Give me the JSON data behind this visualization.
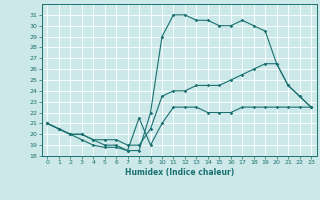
{
  "title": "",
  "xlabel": "Humidex (Indice chaleur)",
  "bg_color": "#cce8e8",
  "grid_color": "#ffffff",
  "line_color": "#1a7070",
  "xlim": [
    -0.5,
    23.5
  ],
  "ylim": [
    18,
    32
  ],
  "xticks": [
    0,
    1,
    2,
    3,
    4,
    5,
    6,
    7,
    8,
    9,
    10,
    11,
    12,
    13,
    14,
    15,
    16,
    17,
    18,
    19,
    20,
    21,
    22,
    23
  ],
  "yticks": [
    18,
    19,
    20,
    21,
    22,
    23,
    24,
    25,
    26,
    27,
    28,
    29,
    30,
    31
  ],
  "line1_x": [
    0,
    1,
    2,
    3,
    4,
    5,
    6,
    7,
    8,
    9,
    10,
    11,
    12,
    13,
    14,
    15,
    16,
    17,
    18,
    19,
    20,
    21,
    22,
    23
  ],
  "line1_y": [
    21.0,
    20.5,
    20.0,
    19.5,
    19.0,
    18.8,
    18.8,
    18.5,
    21.5,
    19.0,
    21.0,
    22.5,
    22.5,
    22.5,
    22.0,
    22.0,
    22.0,
    22.5,
    22.5,
    22.5,
    22.5,
    22.5,
    22.5,
    22.5
  ],
  "line2_x": [
    0,
    1,
    2,
    3,
    4,
    5,
    6,
    7,
    8,
    9,
    10,
    11,
    12,
    13,
    14,
    15,
    16,
    17,
    18,
    19,
    20,
    21,
    22,
    23
  ],
  "line2_y": [
    21.0,
    20.5,
    20.0,
    20.0,
    19.5,
    19.5,
    19.5,
    19.0,
    19.0,
    20.5,
    23.5,
    24.0,
    24.0,
    24.5,
    24.5,
    24.5,
    25.0,
    25.5,
    26.0,
    26.5,
    26.5,
    24.5,
    23.5,
    22.5
  ],
  "line3_x": [
    0,
    1,
    2,
    3,
    4,
    5,
    6,
    7,
    8,
    9,
    10,
    11,
    12,
    13,
    14,
    15,
    16,
    17,
    18,
    19,
    20,
    21,
    22,
    23
  ],
  "line3_y": [
    21.0,
    20.5,
    20.0,
    20.0,
    19.5,
    19.0,
    19.0,
    18.5,
    18.5,
    22.0,
    29.0,
    31.0,
    31.0,
    30.5,
    30.5,
    30.0,
    30.0,
    30.5,
    30.0,
    29.5,
    26.5,
    24.5,
    23.5,
    22.5
  ],
  "xlabel_fontsize": 5.5,
  "tick_fontsize": 4.5,
  "linewidth": 0.8,
  "markersize": 1.8
}
